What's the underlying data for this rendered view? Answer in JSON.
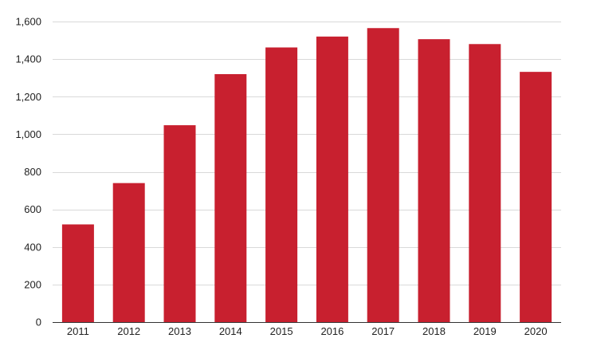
{
  "chart_data": {
    "type": "bar",
    "title": "",
    "xlabel": "",
    "ylabel": "",
    "categories": [
      "2011",
      "2012",
      "2013",
      "2014",
      "2015",
      "2016",
      "2017",
      "2018",
      "2019",
      "2020"
    ],
    "values": [
      520,
      740,
      1048,
      1320,
      1462,
      1520,
      1565,
      1506,
      1480,
      1332
    ],
    "ylim": [
      0,
      1600
    ],
    "yticks": [
      0,
      200,
      400,
      600,
      800,
      1000,
      1200,
      1400,
      1600
    ],
    "ytick_labels": [
      "0",
      "200",
      "400",
      "600",
      "800",
      "1,000",
      "1,200",
      "1,400",
      "1,600"
    ],
    "grid": true,
    "legend": "none",
    "colors": {
      "bar": "#c8202f",
      "grid": "#d9d9d9",
      "axis": "#333333",
      "text": "#222222"
    }
  }
}
